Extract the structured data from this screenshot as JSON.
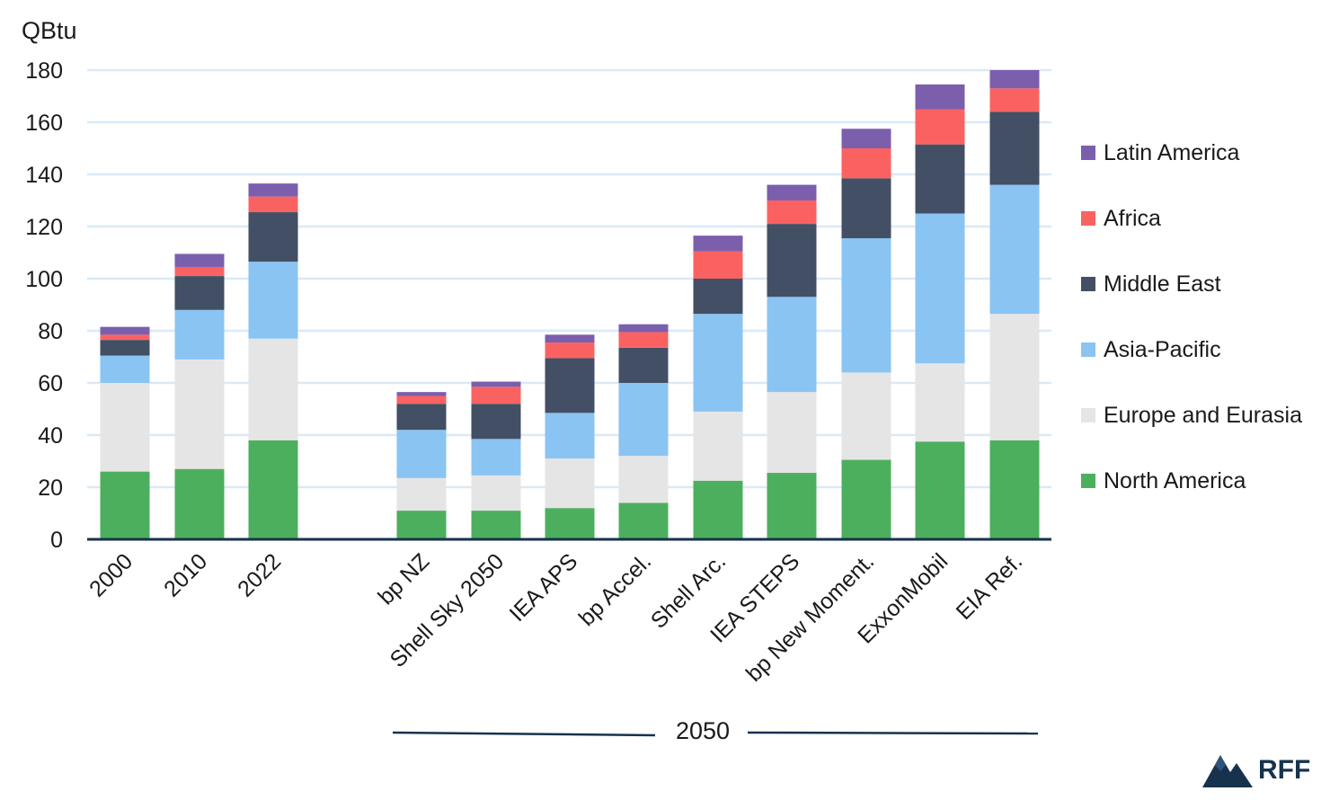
{
  "chart_data": {
    "type": "bar",
    "stacked": true,
    "ylabel": "QBtu",
    "ylim": [
      0,
      180
    ],
    "yticks": [
      0,
      20,
      40,
      60,
      80,
      100,
      120,
      140,
      160,
      180
    ],
    "grid": true,
    "legend_position": "right",
    "categories": [
      "2000",
      "2010",
      "2022",
      "bp NZ",
      "Shell Sky 2050",
      "IEA APS",
      "bp Accel.",
      "Shell Arc.",
      "IEA STEPS",
      "bp New Moment.",
      "ExxonMobil",
      "EIA Ref."
    ],
    "group_label": "2050",
    "series": [
      {
        "name": "North America",
        "color": "#4caf5e",
        "values": [
          26,
          27,
          38,
          11,
          11,
          12,
          14,
          22.5,
          25.5,
          30.5,
          37.5,
          38
        ]
      },
      {
        "name": "Europe and Eurasia",
        "color": "#e5e5e5",
        "values": [
          34,
          42,
          39,
          12.5,
          13.5,
          19,
          18,
          26.5,
          31,
          33.5,
          30,
          48.5
        ]
      },
      {
        "name": "Asia-Pacific",
        "color": "#8ac4f3",
        "values": [
          10.5,
          19,
          29.5,
          18.5,
          14,
          17.5,
          28,
          37.5,
          36.5,
          51.5,
          57.5,
          49.5
        ]
      },
      {
        "name": "Middle East",
        "color": "#434f64",
        "values": [
          6,
          13,
          19,
          10,
          13.5,
          21,
          13.5,
          13.5,
          28,
          23,
          26.5,
          28
        ]
      },
      {
        "name": "Africa",
        "color": "#fa6262",
        "values": [
          2,
          3.5,
          6,
          3,
          6.5,
          6,
          6,
          10.5,
          9,
          11.5,
          13.5,
          9
        ]
      },
      {
        "name": "Latin America",
        "color": "#7b5fad",
        "values": [
          3,
          5,
          5,
          1.5,
          2,
          3,
          3,
          6,
          6,
          7.5,
          9.5,
          7
        ]
      }
    ]
  },
  "legend_order": [
    "Latin America",
    "Africa",
    "Middle East",
    "Asia-Pacific",
    "Europe and Eurasia",
    "North America"
  ],
  "branding": {
    "logo_text": "RFF",
    "logo_color": "#17324d"
  }
}
